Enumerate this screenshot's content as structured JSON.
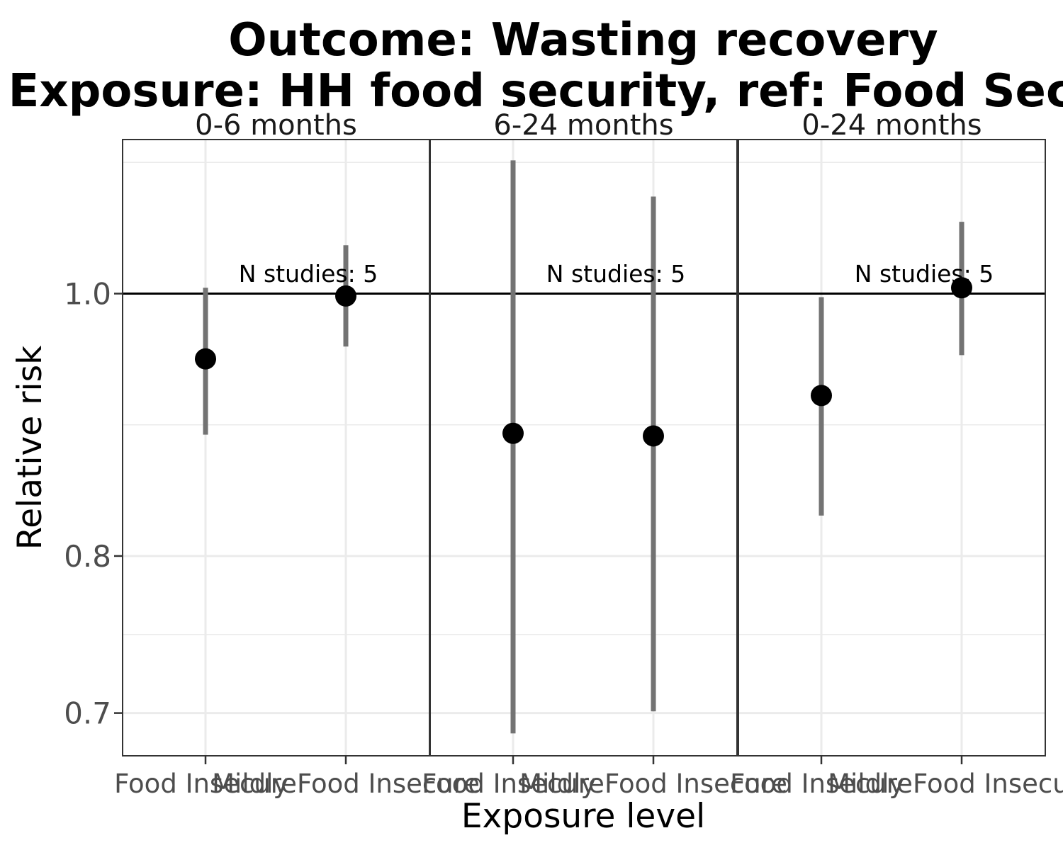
{
  "chart_data": {
    "type": "scatter",
    "title_lines": [
      "Outcome: Wasting recovery",
      "Exposure: HH food security, ref: Food Secure"
    ],
    "xlabel": "Exposure level",
    "ylabel": "Relative risk",
    "y_scale": "log",
    "ylim": [
      0.675,
      1.14
    ],
    "yticks": [
      {
        "value": 0.7,
        "label": "0.7"
      },
      {
        "value": 0.8,
        "label": "0.8"
      },
      {
        "value": 1.0,
        "label": "1.0"
      }
    ],
    "reference_line": 1.0,
    "grid": true,
    "categories": [
      "Food Insecure",
      "Mildly Food Insecure"
    ],
    "panels": [
      {
        "label": "0-6 months",
        "annotation": "N studies: 5",
        "points": [
          {
            "category": "Food Insecure",
            "estimate": 0.946,
            "ci_lower": 0.887,
            "ci_upper": 1.005
          },
          {
            "category": "Mildly Food Insecure",
            "estimate": 0.998,
            "ci_lower": 0.956,
            "ci_upper": 1.042
          }
        ]
      },
      {
        "label": "6-24 months",
        "annotation": "N studies: 5",
        "points": [
          {
            "category": "Food Insecure",
            "estimate": 0.888,
            "ci_lower": 0.688,
            "ci_upper": 1.12
          },
          {
            "category": "Mildly Food Insecure",
            "estimate": 0.886,
            "ci_lower": 0.701,
            "ci_upper": 1.086
          }
        ]
      },
      {
        "label": "0-24 months",
        "annotation": "N studies: 5",
        "points": [
          {
            "category": "Food Insecure",
            "estimate": 0.917,
            "ci_lower": 0.828,
            "ci_upper": 0.997
          },
          {
            "category": "Mildly Food Insecure",
            "estimate": 1.005,
            "ci_lower": 0.949,
            "ci_upper": 1.063
          }
        ]
      }
    ]
  }
}
